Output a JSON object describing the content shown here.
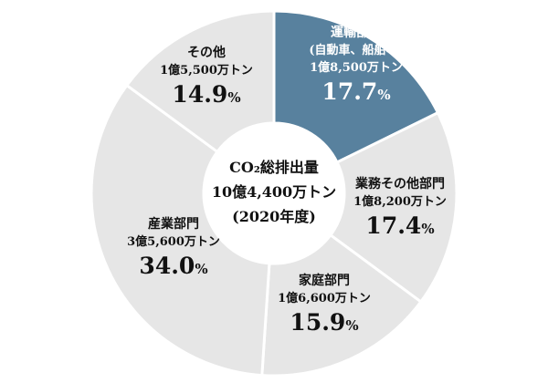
{
  "chart_data": {
    "type": "pie",
    "center": {
      "title": "CO₂総排出量",
      "total": "10億4,400万トン",
      "year": "(2020年度)"
    },
    "slices": [
      {
        "name": "運輸部門",
        "sub": "(自動車、船舶等)",
        "amount": "1億8,500万トン",
        "percent": 17.7,
        "percent_label": "17.7",
        "color": "#58819e",
        "text_color": "#ffffff"
      },
      {
        "name": "業務その他部門",
        "sub": "",
        "amount": "1億8,200万トン",
        "percent": 17.4,
        "percent_label": "17.4",
        "color": "#e6e6e6",
        "text_color": "#111111"
      },
      {
        "name": "家庭部門",
        "sub": "",
        "amount": "1億6,600万トン",
        "percent": 15.9,
        "percent_label": "15.9",
        "color": "#e6e6e6",
        "text_color": "#111111"
      },
      {
        "name": "産業部門",
        "sub": "",
        "amount": "3億5,600万トン",
        "percent": 34.0,
        "percent_label": "34.0",
        "color": "#e6e6e6",
        "text_color": "#111111"
      },
      {
        "name": "その他",
        "sub": "",
        "amount": "1億5,500万トン",
        "percent": 14.9,
        "percent_label": "14.9",
        "color": "#e6e6e6",
        "text_color": "#111111"
      }
    ],
    "percent_unit": "%"
  }
}
